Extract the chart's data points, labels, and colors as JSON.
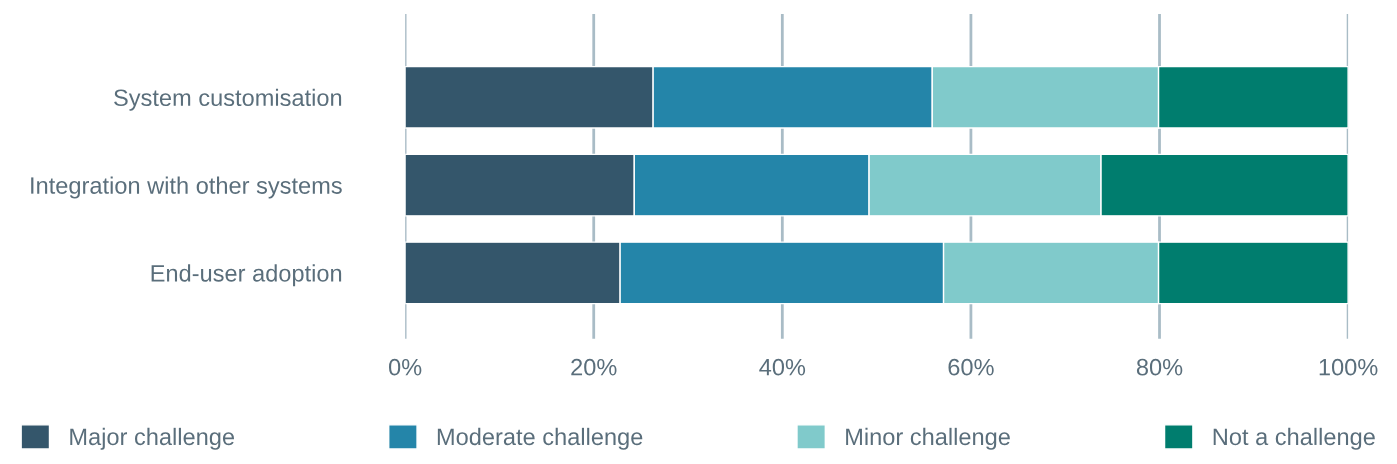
{
  "chart_data": {
    "type": "bar",
    "orientation": "horizontal",
    "stacked": true,
    "categories": [
      "System customisation",
      "Integration with other systems",
      "End-user adoption"
    ],
    "series": [
      {
        "name": "Major challenge",
        "color": "#34566b",
        "values": [
          26.3,
          24.3,
          22.8
        ]
      },
      {
        "name": "Moderate challenge",
        "color": "#2485a9",
        "values": [
          29.6,
          24.9,
          34.3
        ]
      },
      {
        "name": "Minor challenge",
        "color": "#80cacb",
        "values": [
          24.0,
          24.6,
          22.8
        ]
      },
      {
        "name": "Not a challenge",
        "color": "#007d6e",
        "values": [
          20.1,
          26.2,
          20.1
        ]
      }
    ],
    "xlim": [
      0,
      100
    ],
    "xticks": [
      {
        "value": 0,
        "label": "0%"
      },
      {
        "value": 20,
        "label": "20%"
      },
      {
        "value": 40,
        "label": "40%"
      },
      {
        "value": 60,
        "label": "60%"
      },
      {
        "value": 80,
        "label": "80%"
      },
      {
        "value": 100,
        "label": "100%"
      }
    ],
    "grid": "x",
    "legend": "bottom"
  }
}
